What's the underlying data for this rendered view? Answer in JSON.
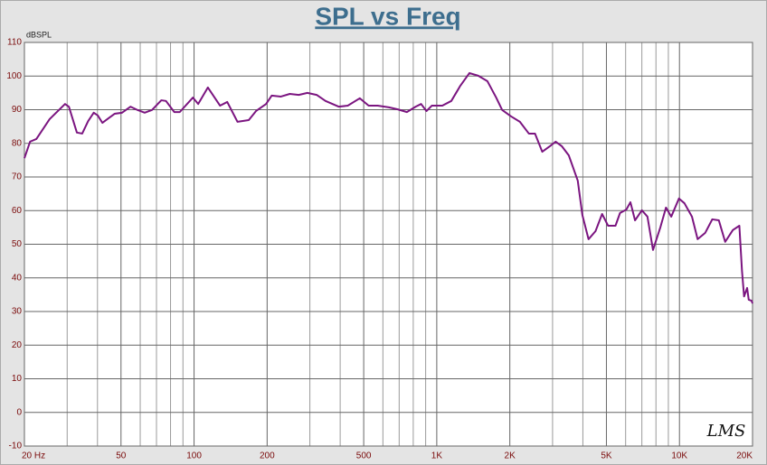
{
  "chart_data": {
    "type": "line",
    "title": "SPL vs Freq",
    "ylabel": "dBSPL",
    "logo": "LMS",
    "xscale": "log",
    "grid": true,
    "color": "#7b1580",
    "xlim": [
      20,
      20000
    ],
    "ylim": [
      -10,
      110
    ],
    "xticks": [
      {
        "value": 20,
        "label": "20 Hz"
      },
      50,
      100,
      200,
      500,
      {
        "value": 1000,
        "label": "1K"
      },
      {
        "value": 2000,
        "label": "2K"
      },
      {
        "value": 5000,
        "label": "5K"
      },
      {
        "value": 10000,
        "label": "10K"
      },
      {
        "value": 20000,
        "label": "20K"
      }
    ],
    "x_minor_grid": [
      30,
      40,
      60,
      70,
      80,
      90,
      300,
      400,
      600,
      700,
      800,
      900,
      3000,
      4000,
      6000,
      7000,
      8000,
      9000
    ],
    "yticks": [
      -10,
      0,
      10,
      20,
      30,
      40,
      50,
      60,
      70,
      80,
      90,
      100,
      110
    ],
    "x": [
      20,
      21.1,
      22.4,
      25.4,
      29.4,
      30.5,
      32.9,
      34.6,
      36.6,
      38.6,
      40.1,
      41.9,
      44.3,
      47.1,
      50.5,
      54.7,
      58.5,
      62.6,
      67.1,
      73.3,
      76.6,
      82.9,
      87.3,
      98.9,
      104,
      114,
      128,
      137,
      151,
      168,
      180,
      198,
      209,
      228,
      248,
      270,
      293,
      320,
      348,
      395,
      430,
      482,
      524,
      571,
      635,
      691,
      753,
      819,
      862,
      907,
      954,
      1054,
      1148,
      1250,
      1363,
      1482,
      1616,
      1757,
      1860,
      2025,
      2200,
      2396,
      2540,
      2720,
      2920,
      3090,
      3280,
      3500,
      3810,
      3980,
      4220,
      4510,
      4800,
      5080,
      5450,
      5690,
      6040,
      6280,
      6560,
      7000,
      7380,
      7780,
      8340,
      8800,
      9250,
      9950,
      10480,
      11260,
      11880,
      12770,
      13650,
      14530,
      15430,
      16590,
      17650,
      18100,
      18460,
      19000,
      19290,
      19810,
      20000
    ],
    "values": [
      75.6,
      80.5,
      81.3,
      87.2,
      91.7,
      90.9,
      83.2,
      82.9,
      86.6,
      89.1,
      88.3,
      86.1,
      87.4,
      88.8,
      89.1,
      90.9,
      89.9,
      89.1,
      89.9,
      92.8,
      92.6,
      89.3,
      89.3,
      93.6,
      91.7,
      96.6,
      91.2,
      92.3,
      86.4,
      86.9,
      89.6,
      91.7,
      94.2,
      93.9,
      94.7,
      94.4,
      95.0,
      94.4,
      92.6,
      90.9,
      91.2,
      93.4,
      91.2,
      91.2,
      90.7,
      90.1,
      89.3,
      90.9,
      91.7,
      89.6,
      91.2,
      91.2,
      92.6,
      97.1,
      100.9,
      100.1,
      98.5,
      93.6,
      89.9,
      88.0,
      86.4,
      82.9,
      82.9,
      77.5,
      79.1,
      80.5,
      79.1,
      76.4,
      68.9,
      58.7,
      51.5,
      53.9,
      59.0,
      55.5,
      55.5,
      59.3,
      60.3,
      62.5,
      57.1,
      60.1,
      58.2,
      48.3,
      55.0,
      60.9,
      58.2,
      63.6,
      62.2,
      58.2,
      51.5,
      53.4,
      57.4,
      57.1,
      50.7,
      54.2,
      55.5,
      42.0,
      34.5,
      37.0,
      33.5,
      33.2,
      32.4
    ]
  }
}
